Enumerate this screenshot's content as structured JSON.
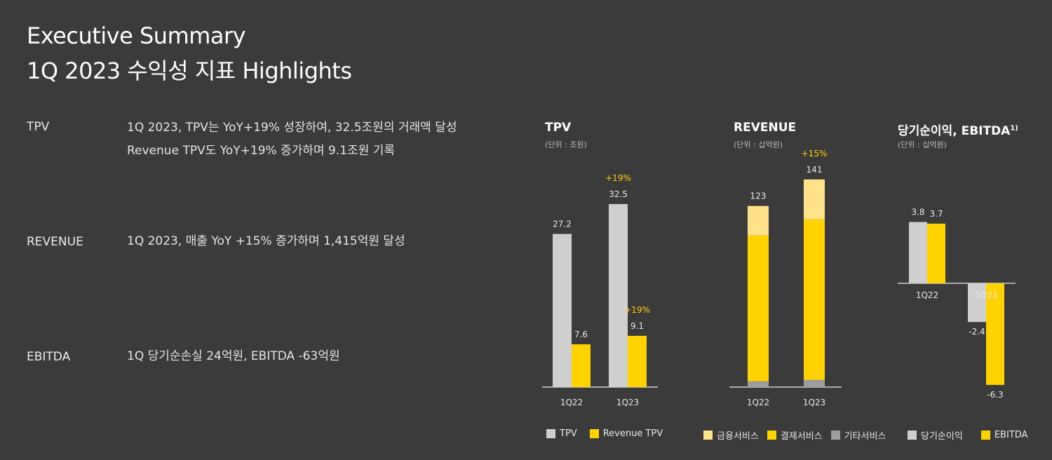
{
  "header": {
    "title_line1": "Executive Summary",
    "title_line2": "1Q 2023 수익성 지표 Highlights"
  },
  "highlights": [
    {
      "label": "TPV",
      "lines": [
        "1Q 2023, TPV는 YoY+19% 성장하여, 32.5조원의 거래액 달성",
        "Revenue TPV도 YoY+19% 증가하며 9.1조원 기록"
      ]
    },
    {
      "label": "REVENUE",
      "lines": [
        "1Q 2023, 매출 YoY +15% 증가하며 1,415억원 달성"
      ]
    },
    {
      "label": "EBITDA",
      "lines": [
        "1Q 당기순손실 24억원, EBITDA -63억원"
      ]
    }
  ],
  "colors": {
    "background": "#3b3b3b",
    "gray_bar": "#cfcfcf",
    "yellow": "#ffd200",
    "light_yellow": "#ffe28a",
    "dark_gray": "#9d9d9d",
    "growth_label": "#ffd200"
  },
  "chart_data": [
    {
      "type": "bar",
      "title": "TPV",
      "unit": "(단위 : 조원)",
      "categories": [
        "1Q22",
        "1Q23"
      ],
      "series": [
        {
          "name": "TPV",
          "values": [
            27.2,
            32.5
          ],
          "labels": [
            "27.2",
            "32.5"
          ],
          "color": "#cfcfcf"
        },
        {
          "name": "Revenue TPV",
          "values": [
            7.6,
            9.1
          ],
          "labels": [
            "7.6",
            "9.1"
          ],
          "color": "#ffd200"
        }
      ],
      "annotations": [
        {
          "text": "+19%",
          "series": 0,
          "category": 1
        },
        {
          "text": "+19%",
          "series": 1,
          "category": 1
        }
      ],
      "legend": [
        "TPV",
        "Revenue TPV"
      ]
    },
    {
      "type": "bar",
      "stacked": true,
      "title": "REVENUE",
      "unit": "(단위 : 십억원)",
      "categories": [
        "1Q22",
        "1Q23"
      ],
      "totals": [
        123,
        141
      ],
      "total_labels": [
        "123",
        "141"
      ],
      "series": [
        {
          "name": "기타서비스",
          "values": [
            4,
            5
          ],
          "color": "#9d9d9d"
        },
        {
          "name": "결제서비스",
          "values": [
            99,
            109
          ],
          "color": "#ffd200"
        },
        {
          "name": "금융서비스",
          "values": [
            20,
            27
          ],
          "color": "#ffe28a"
        }
      ],
      "annotations": [
        {
          "text": "+15%",
          "category": 1
        }
      ],
      "legend": [
        "금융서비스",
        "결제서비스",
        "기타서비스"
      ]
    },
    {
      "type": "bar",
      "title": "당기순이익, EBITDA",
      "title_sup": "1)",
      "unit": "(단위 : 십억원)",
      "categories": [
        "1Q22",
        "1Q23"
      ],
      "series": [
        {
          "name": "당기순이익",
          "values": [
            3.8,
            -2.4
          ],
          "labels": [
            "3.8",
            "-2.4"
          ],
          "color": "#cfcfcf"
        },
        {
          "name": "EBITDA",
          "values": [
            3.7,
            -6.3
          ],
          "labels": [
            "3.7",
            "-6.3"
          ],
          "color": "#ffd200"
        }
      ],
      "legend": [
        "당기순이익",
        "EBITDA"
      ]
    }
  ]
}
